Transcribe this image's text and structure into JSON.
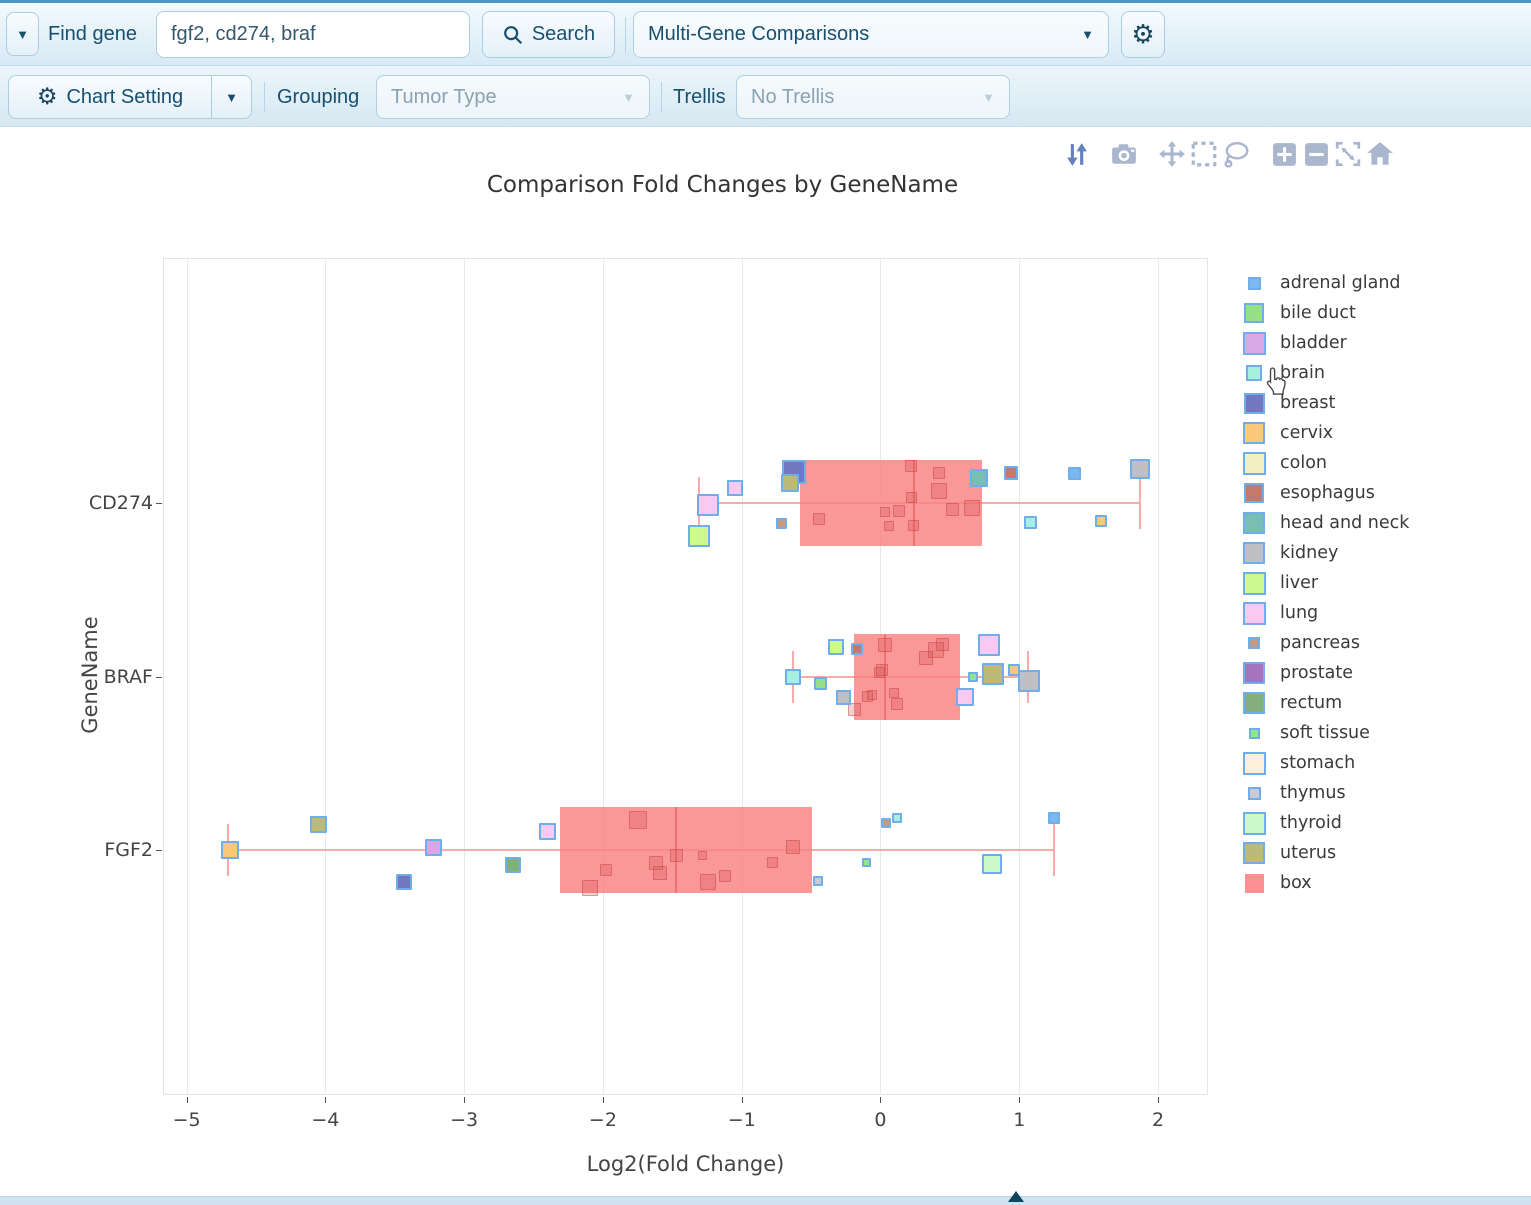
{
  "toolbar": {
    "find_gene_label": "Find gene",
    "gene_input_value": "fgf2, cd274, braf",
    "search_label": "Search",
    "analysis_select_value": "Multi-Gene Comparisons",
    "chart_setting_label": "Chart Setting",
    "grouping_label": "Grouping",
    "grouping_value": "Tumor Type",
    "trellis_label": "Trellis",
    "trellis_value": "No Trellis"
  },
  "modebar_icons": [
    "sort-axes",
    "camera",
    "pan",
    "box-select",
    "lasso-select",
    "zoom-in",
    "zoom-out",
    "autoscale",
    "reset-home"
  ],
  "chart_data": {
    "type": "box",
    "title": "Comparison Fold Changes by GeneName",
    "xlabel": "Log2(Fold Change)",
    "ylabel": "GeneName",
    "x_ticks": [
      -5,
      -4,
      -3,
      -2,
      -1,
      0,
      1,
      2
    ],
    "xlim": [
      -5.17,
      2.36
    ],
    "grid": true,
    "legend_position": "right",
    "categories": [
      "CD274",
      "BRAF",
      "FGF2"
    ],
    "box_color": "rgba(249,128,128,0.82)",
    "median_color": "rgba(235,100,100,0.75)",
    "whisker_color": "#f8abab",
    "point_border_color": "#6faee8",
    "inside_point_fill": "rgba(210,75,75,0.26)",
    "inside_point_border": "rgba(195,60,60,0.40)",
    "colors": {
      "adrenal gland": "#7CB8F0",
      "bile duct": "#96E089",
      "bladder": "#D9A7E6",
      "brain": "#A8EFE3",
      "breast": "#7277BF",
      "cervix": "#FBC878",
      "colon": "#F5F0C3",
      "esophagus": "#C4796F",
      "head and neck": "#79BEB3",
      "kidney": "#BFBFC4",
      "liver": "#CDFA8E",
      "lung": "#F9C8F3",
      "pancreas": "#C39B82",
      "prostate": "#A673BC",
      "rectum": "#83AF7D",
      "soft tissue": "#90E884",
      "stomach": "#FDF0D8",
      "thymus": "#CBCBD5",
      "thyroid": "#CBFBCB",
      "uterus": "#BDB976",
      "box": "#FC9090"
    },
    "legend": [
      {
        "label": "adrenal gland",
        "size": 13,
        "bordered": true
      },
      {
        "label": "bile duct",
        "size": 20,
        "bordered": true
      },
      {
        "label": "bladder",
        "size": 23,
        "bordered": true
      },
      {
        "label": "brain",
        "size": 16,
        "bordered": true
      },
      {
        "label": "breast",
        "size": 21,
        "bordered": true
      },
      {
        "label": "cervix",
        "size": 22,
        "bordered": true
      },
      {
        "label": "colon",
        "size": 23,
        "bordered": true
      },
      {
        "label": "esophagus",
        "size": 20,
        "bordered": true
      },
      {
        "label": "head and neck",
        "size": 22,
        "bordered": true
      },
      {
        "label": "kidney",
        "size": 22,
        "bordered": true
      },
      {
        "label": "liver",
        "size": 23,
        "bordered": true
      },
      {
        "label": "lung",
        "size": 23,
        "bordered": true
      },
      {
        "label": "pancreas",
        "size": 12,
        "bordered": true
      },
      {
        "label": "prostate",
        "size": 22,
        "bordered": true
      },
      {
        "label": "rectum",
        "size": 22,
        "bordered": true
      },
      {
        "label": "soft tissue",
        "size": 11,
        "bordered": true
      },
      {
        "label": "stomach",
        "size": 23,
        "bordered": true
      },
      {
        "label": "thymus",
        "size": 13,
        "bordered": true
      },
      {
        "label": "thyroid",
        "size": 23,
        "bordered": true
      },
      {
        "label": "uterus",
        "size": 22,
        "bordered": true
      },
      {
        "label": "box",
        "size": 19,
        "bordered": false
      }
    ],
    "boxes": [
      {
        "gene": "CD274",
        "q1": -0.58,
        "median": 0.24,
        "q3": 0.73,
        "whisker_low": -1.31,
        "whisker_high": 1.87
      },
      {
        "gene": "BRAF",
        "q1": -0.19,
        "median": 0.03,
        "q3": 0.57,
        "whisker_low": -0.63,
        "whisker_high": 1.06
      },
      {
        "gene": "FGF2",
        "q1": -2.31,
        "median": -1.47,
        "q3": -0.49,
        "whisker_low": -4.7,
        "whisker_high": 1.25
      }
    ],
    "points": [
      {
        "gene": "CD274",
        "x": -1.05,
        "dy": -15,
        "tissue": "lung",
        "size": 16
      },
      {
        "gene": "CD274",
        "x": -1.24,
        "dy": 2,
        "tissue": "lung",
        "size": 22
      },
      {
        "gene": "CD274",
        "x": -1.31,
        "dy": 33,
        "tissue": "liver",
        "size": 22
      },
      {
        "gene": "CD274",
        "x": -0.62,
        "dy": -31,
        "tissue": "breast",
        "size": 24
      },
      {
        "gene": "CD274",
        "x": -0.65,
        "dy": -20,
        "tissue": "uterus",
        "size": 18
      },
      {
        "gene": "CD274",
        "x": -0.71,
        "dy": 20,
        "tissue": "pancreas",
        "size": 11
      },
      {
        "gene": "CD274",
        "x": 0.71,
        "dy": -25,
        "tissue": "head and neck",
        "size": 18
      },
      {
        "gene": "CD274",
        "x": 0.94,
        "dy": -30,
        "tissue": "esophagus",
        "size": 14
      },
      {
        "gene": "CD274",
        "x": 1.4,
        "dy": -30,
        "tissue": "adrenal gland",
        "size": 13
      },
      {
        "gene": "CD274",
        "x": 1.87,
        "dy": -34,
        "tissue": "kidney",
        "size": 20
      },
      {
        "gene": "CD274",
        "x": 1.08,
        "dy": 19,
        "tissue": "brain",
        "size": 13
      },
      {
        "gene": "CD274",
        "x": 1.59,
        "dy": 18,
        "tissue": "cervix",
        "size": 12
      },
      {
        "gene": "BRAF",
        "x": -0.32,
        "dy": -30,
        "tissue": "liver",
        "size": 16
      },
      {
        "gene": "BRAF",
        "x": -0.63,
        "dy": 0,
        "tissue": "brain",
        "size": 16
      },
      {
        "gene": "BRAF",
        "x": -0.43,
        "dy": 7,
        "tissue": "bile duct",
        "size": 13
      },
      {
        "gene": "BRAF",
        "x": -0.27,
        "dy": 21,
        "tissue": "kidney",
        "size": 15
      },
      {
        "gene": "BRAF",
        "x": -0.17,
        "dy": -28,
        "tissue": "esophagus",
        "size": 12
      },
      {
        "gene": "BRAF",
        "x": 0.78,
        "dy": -32,
        "tissue": "lung",
        "size": 22
      },
      {
        "gene": "BRAF",
        "x": 0.61,
        "dy": 20,
        "tissue": "lung",
        "size": 18
      },
      {
        "gene": "BRAF",
        "x": 0.67,
        "dy": 0,
        "tissue": "soft tissue",
        "size": 10
      },
      {
        "gene": "BRAF",
        "x": 0.81,
        "dy": -3,
        "tissue": "uterus",
        "size": 22
      },
      {
        "gene": "BRAF",
        "x": 0.96,
        "dy": -7,
        "tissue": "cervix",
        "size": 12
      },
      {
        "gene": "BRAF",
        "x": 1.07,
        "dy": 4,
        "tissue": "kidney",
        "size": 22
      },
      {
        "gene": "FGF2",
        "x": -4.69,
        "dy": 0,
        "tissue": "cervix",
        "size": 18
      },
      {
        "gene": "FGF2",
        "x": -4.05,
        "dy": -26,
        "tissue": "uterus",
        "size": 17
      },
      {
        "gene": "FGF2",
        "x": -3.22,
        "dy": -3,
        "tissue": "bladder",
        "size": 17
      },
      {
        "gene": "FGF2",
        "x": -3.43,
        "dy": 32,
        "tissue": "breast",
        "size": 16
      },
      {
        "gene": "FGF2",
        "x": -2.65,
        "dy": 15,
        "tissue": "rectum",
        "size": 16
      },
      {
        "gene": "FGF2",
        "x": -2.4,
        "dy": -19,
        "tissue": "lung",
        "size": 17
      },
      {
        "gene": "FGF2",
        "x": -0.45,
        "dy": 31,
        "tissue": "thymus",
        "size": 10
      },
      {
        "gene": "FGF2",
        "x": -0.1,
        "dy": 12,
        "tissue": "soft tissue",
        "size": 9
      },
      {
        "gene": "FGF2",
        "x": 0.04,
        "dy": -27,
        "tissue": "pancreas",
        "size": 10
      },
      {
        "gene": "FGF2",
        "x": 0.12,
        "dy": -32,
        "tissue": "brain",
        "size": 10
      },
      {
        "gene": "FGF2",
        "x": 0.8,
        "dy": 14,
        "tissue": "thyroid",
        "size": 20
      },
      {
        "gene": "FGF2",
        "x": 1.25,
        "dy": -32,
        "tissue": "adrenal gland",
        "size": 12
      }
    ],
    "inside_points": [
      {
        "gene": "CD274",
        "x": -0.44,
        "dy": 16,
        "size": 12
      },
      {
        "gene": "CD274",
        "x": 0.22,
        "dy": -37,
        "size": 12
      },
      {
        "gene": "CD274",
        "x": 0.42,
        "dy": -12,
        "size": 16
      },
      {
        "gene": "CD274",
        "x": 0.03,
        "dy": 9,
        "size": 10
      },
      {
        "gene": "CD274",
        "x": 0.13,
        "dy": 8,
        "size": 12
      },
      {
        "gene": "CD274",
        "x": 0.22,
        "dy": -6,
        "size": 11
      },
      {
        "gene": "CD274",
        "x": 0.06,
        "dy": 23,
        "size": 10
      },
      {
        "gene": "CD274",
        "x": 0.52,
        "dy": 6,
        "size": 13
      },
      {
        "gene": "CD274",
        "x": 0.66,
        "dy": 5,
        "size": 16
      },
      {
        "gene": "CD274",
        "x": 0.24,
        "dy": 22,
        "size": 11
      },
      {
        "gene": "CD274",
        "x": 0.42,
        "dy": -30,
        "size": 12
      },
      {
        "gene": "BRAF",
        "x": 0.03,
        "dy": -32,
        "size": 14
      },
      {
        "gene": "BRAF",
        "x": 0.4,
        "dy": -27,
        "size": 16
      },
      {
        "gene": "BRAF",
        "x": 0.45,
        "dy": -32,
        "size": 13
      },
      {
        "gene": "BRAF",
        "x": 0.33,
        "dy": -19,
        "size": 14
      },
      {
        "gene": "BRAF",
        "x": 0.01,
        "dy": -7,
        "size": 12
      },
      {
        "gene": "BRAF",
        "x": -0.01,
        "dy": -4,
        "size": 11
      },
      {
        "gene": "BRAF",
        "x": -0.09,
        "dy": 20,
        "size": 11
      },
      {
        "gene": "BRAF",
        "x": -0.06,
        "dy": 18,
        "size": 10
      },
      {
        "gene": "BRAF",
        "x": 0.1,
        "dy": 16,
        "size": 10
      },
      {
        "gene": "BRAF",
        "x": 0.12,
        "dy": 27,
        "size": 12
      },
      {
        "gene": "BRAF",
        "x": -0.19,
        "dy": 33,
        "size": 13
      },
      {
        "gene": "FGF2",
        "x": -1.75,
        "dy": -30,
        "size": 18
      },
      {
        "gene": "FGF2",
        "x": -2.09,
        "dy": 38,
        "size": 16
      },
      {
        "gene": "FGF2",
        "x": -1.98,
        "dy": 20,
        "size": 12
      },
      {
        "gene": "FGF2",
        "x": -1.62,
        "dy": 13,
        "size": 14
      },
      {
        "gene": "FGF2",
        "x": -1.59,
        "dy": 23,
        "size": 14
      },
      {
        "gene": "FGF2",
        "x": -1.47,
        "dy": 5,
        "size": 13
      },
      {
        "gene": "FGF2",
        "x": -1.28,
        "dy": 5,
        "size": 9
      },
      {
        "gene": "FGF2",
        "x": -1.24,
        "dy": 32,
        "size": 16
      },
      {
        "gene": "FGF2",
        "x": -1.12,
        "dy": 26,
        "size": 12
      },
      {
        "gene": "FGF2",
        "x": -0.78,
        "dy": 12,
        "size": 11
      },
      {
        "gene": "FGF2",
        "x": -0.63,
        "dy": -3,
        "size": 14
      }
    ],
    "cursor_hover_legend_item": "brain"
  }
}
